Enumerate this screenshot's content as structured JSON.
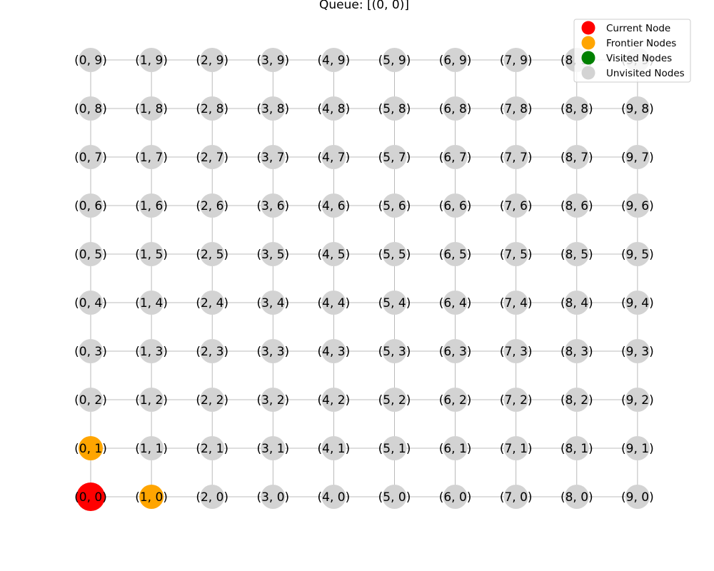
{
  "title": "Queue: [(0, 0)]",
  "grid": {
    "cols": 10,
    "rows": 10
  },
  "colors": {
    "current": "#ff0000",
    "frontier": "#ffa500",
    "visited": "#008000",
    "unvisited": "#d3d3d3",
    "edge": "#a9a9a9"
  },
  "legend": [
    {
      "key": "current",
      "label": "Current Node"
    },
    {
      "key": "frontier",
      "label": "Frontier Nodes"
    },
    {
      "key": "visited",
      "label": "Visited Nodes"
    },
    {
      "key": "unvisited",
      "label": "Unvisited Nodes"
    }
  ],
  "state": {
    "current": [
      [
        0,
        0
      ]
    ],
    "frontier": [
      [
        0,
        1
      ],
      [
        1,
        0
      ]
    ],
    "visited": []
  }
}
